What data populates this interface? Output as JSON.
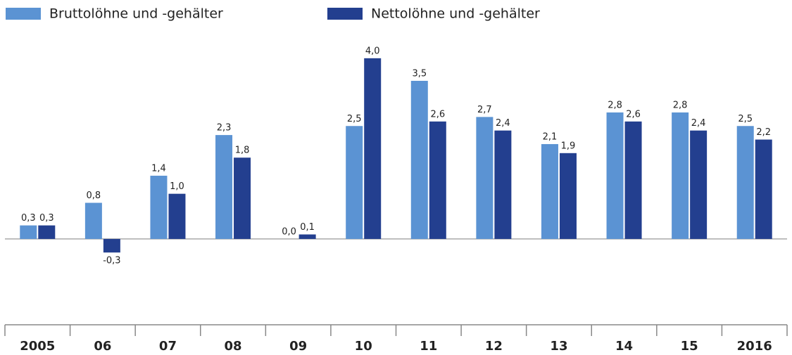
{
  "chart_data": {
    "type": "bar",
    "categories": [
      "2005",
      "06",
      "07",
      "08",
      "09",
      "10",
      "11",
      "12",
      "13",
      "14",
      "15",
      "2016"
    ],
    "series": [
      {
        "name": "Bruttolöhne und -gehälter",
        "color": "#5b93d3",
        "values": [
          0.3,
          0.8,
          1.4,
          2.3,
          0.0,
          2.5,
          3.5,
          2.7,
          2.1,
          2.8,
          2.8,
          2.5
        ],
        "value_labels": [
          "0,3",
          "0,8",
          "1,4",
          "2,3",
          "0,0",
          "2,5",
          "3,5",
          "2,7",
          "2,1",
          "2,8",
          "2,8",
          "2,5"
        ]
      },
      {
        "name": "Nettolöhne und -gehälter",
        "color": "#233f8f",
        "values": [
          0.3,
          -0.3,
          1.0,
          1.8,
          0.1,
          4.0,
          2.6,
          2.4,
          1.9,
          2.6,
          2.4,
          2.2
        ],
        "value_labels": [
          "0,3",
          "-0,3",
          "1,0",
          "1,8",
          "0,1",
          "4,0",
          "2,6",
          "2,4",
          "1,9",
          "2,6",
          "2,4",
          "2,2"
        ]
      }
    ],
    "ylim": [
      -1.8,
      4.2
    ]
  }
}
